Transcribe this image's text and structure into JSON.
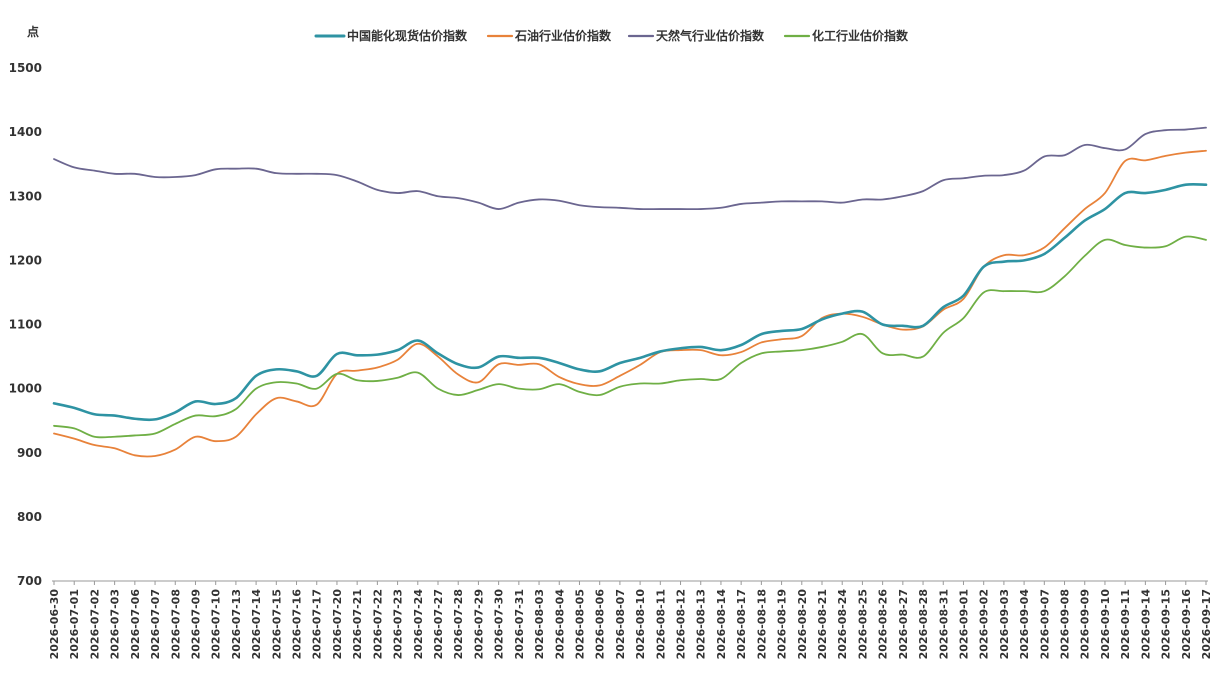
{
  "chart_data": {
    "type": "line",
    "ylabel": "点",
    "ylim": [
      700,
      1500
    ],
    "yticks": [
      700,
      800,
      900,
      1000,
      1100,
      1200,
      1300,
      1400,
      1500
    ],
    "grid": false,
    "legend_position": "top",
    "categories": [
      "2026-06-30",
      "2026-07-01",
      "2026-07-02",
      "2026-07-03",
      "2026-07-06",
      "2026-07-07",
      "2026-07-08",
      "2026-07-09",
      "2026-07-10",
      "2026-07-13",
      "2026-07-14",
      "2026-07-15",
      "2026-07-16",
      "2026-07-17",
      "2026-07-20",
      "2026-07-21",
      "2026-07-22",
      "2026-07-23",
      "2026-07-24",
      "2026-07-27",
      "2026-07-28",
      "2026-07-29",
      "2026-07-30",
      "2026-07-31",
      "2026-08-03",
      "2026-08-04",
      "2026-08-05",
      "2026-08-06",
      "2026-08-07",
      "2026-08-10",
      "2026-08-11",
      "2026-08-12",
      "2026-08-13",
      "2026-08-14",
      "2026-08-17",
      "2026-08-18",
      "2026-08-19",
      "2026-08-20",
      "2026-08-21",
      "2026-08-24",
      "2026-08-25",
      "2026-08-26",
      "2026-08-27",
      "2026-08-28",
      "2026-08-31",
      "2026-09-01",
      "2026-09-02",
      "2026-09-03",
      "2026-09-04",
      "2026-09-07",
      "2026-09-08",
      "2026-09-09",
      "2026-09-10",
      "2026-09-11",
      "2026-09-14",
      "2026-09-15",
      "2026-09-16",
      "2026-09-17"
    ],
    "series": [
      {
        "name": "中国能化现货估价指数",
        "color": "#2E93A3",
        "values": [
          977,
          970,
          960,
          958,
          953,
          952,
          963,
          980,
          976,
          985,
          1020,
          1030,
          1027,
          1020,
          1054,
          1052,
          1053,
          1060,
          1075,
          1055,
          1038,
          1033,
          1050,
          1048,
          1048,
          1040,
          1030,
          1027,
          1040,
          1048,
          1058,
          1063,
          1065,
          1060,
          1068,
          1085,
          1090,
          1093,
          1108,
          1117,
          1120,
          1100,
          1098,
          1098,
          1127,
          1145,
          1190,
          1198,
          1200,
          1210,
          1235,
          1262,
          1280,
          1305,
          1305,
          1310,
          1318,
          1318
        ]
      },
      {
        "name": "石油行业估价指数",
        "color": "#E8823A",
        "values": [
          930,
          922,
          912,
          907,
          896,
          895,
          905,
          925,
          918,
          925,
          960,
          985,
          980,
          975,
          1023,
          1028,
          1033,
          1045,
          1070,
          1050,
          1022,
          1010,
          1038,
          1037,
          1038,
          1018,
          1007,
          1005,
          1020,
          1037,
          1057,
          1060,
          1060,
          1052,
          1057,
          1072,
          1077,
          1082,
          1110,
          1117,
          1112,
          1100,
          1092,
          1097,
          1123,
          1140,
          1190,
          1208,
          1208,
          1220,
          1250,
          1280,
          1305,
          1355,
          1356,
          1363,
          1368,
          1371
        ]
      },
      {
        "name": "天然气行业估价指数",
        "color": "#6B6690",
        "values": [
          1358,
          1345,
          1340,
          1335,
          1335,
          1330,
          1330,
          1333,
          1342,
          1343,
          1343,
          1336,
          1335,
          1335,
          1333,
          1323,
          1310,
          1305,
          1308,
          1300,
          1297,
          1290,
          1280,
          1290,
          1295,
          1293,
          1286,
          1283,
          1282,
          1280,
          1280,
          1280,
          1280,
          1282,
          1288,
          1290,
          1292,
          1292,
          1292,
          1290,
          1295,
          1295,
          1300,
          1308,
          1325,
          1328,
          1332,
          1333,
          1340,
          1362,
          1364,
          1380,
          1375,
          1373,
          1397,
          1403,
          1404,
          1407
        ]
      },
      {
        "name": "化工行业估价指数",
        "color": "#6FAF45",
        "values": [
          942,
          938,
          925,
          925,
          927,
          930,
          945,
          958,
          957,
          968,
          1000,
          1010,
          1008,
          1000,
          1023,
          1013,
          1012,
          1017,
          1025,
          1000,
          990,
          998,
          1007,
          1000,
          999,
          1007,
          995,
          990,
          1003,
          1008,
          1008,
          1013,
          1015,
          1015,
          1040,
          1055,
          1058,
          1060,
          1065,
          1073,
          1085,
          1055,
          1053,
          1050,
          1087,
          1110,
          1150,
          1152,
          1152,
          1152,
          1175,
          1207,
          1232,
          1224,
          1220,
          1222,
          1237,
          1232
        ]
      }
    ]
  }
}
